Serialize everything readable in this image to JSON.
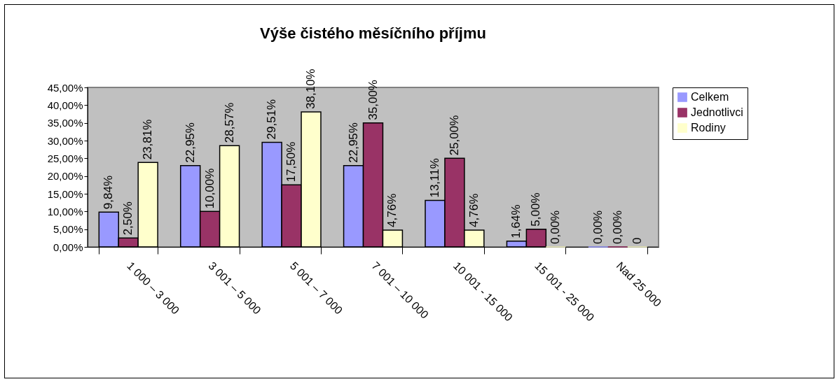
{
  "chart_data": {
    "type": "bar",
    "title": "Výše čistého měsíčního příjmu",
    "categories": [
      "1 000 – 3 000",
      "3 001 – 5 000",
      "5 001 – 7 000",
      "7 001 – 10 000",
      "10 001 - 15 000",
      "15 001 - 25 000",
      "Nad 25 000"
    ],
    "series": [
      {
        "name": "Celkem",
        "color": "#9999ff",
        "values": [
          9.84,
          22.95,
          29.51,
          22.95,
          13.11,
          1.64,
          0
        ],
        "value_labels": [
          "9,84%",
          "22,95%",
          "29,51%",
          "22,95%",
          "13,11%",
          "1,64%",
          "0,00%"
        ]
      },
      {
        "name": "Jednotlivci",
        "color": "#993366",
        "values": [
          2.5,
          10,
          17.5,
          35,
          25,
          5,
          0
        ],
        "value_labels": [
          "2,50%",
          "10,00%",
          "17,50%",
          "35,00%",
          "25,00%",
          "5,00%",
          "0,00%"
        ]
      },
      {
        "name": "Rodiny",
        "color": "#ffffcc",
        "values": [
          23.81,
          28.57,
          38.1,
          4.76,
          4.76,
          0,
          0
        ],
        "value_labels": [
          "23,81%",
          "28,57%",
          "38,10%",
          "4,76%",
          "4,76%",
          "0,00%",
          "0"
        ]
      }
    ],
    "ylim": [
      0,
      45
    ],
    "yticks": [
      {
        "value": 0,
        "label": "0,00%"
      },
      {
        "value": 5,
        "label": "5,00%"
      },
      {
        "value": 10,
        "label": "10,00%"
      },
      {
        "value": 15,
        "label": "15,00%"
      },
      {
        "value": 20,
        "label": "20,00%"
      },
      {
        "value": 25,
        "label": "25,00%"
      },
      {
        "value": 30,
        "label": "30,00%"
      },
      {
        "value": 35,
        "label": "35,00%"
      },
      {
        "value": 40,
        "label": "40,00%"
      },
      {
        "value": 45,
        "label": "45,00%"
      }
    ],
    "legend": "right"
  }
}
